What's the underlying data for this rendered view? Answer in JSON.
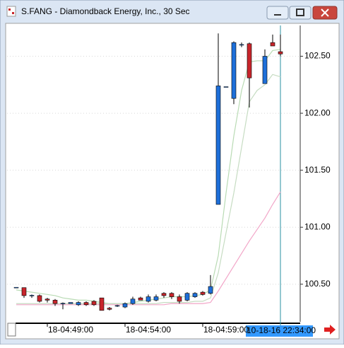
{
  "chart_data": {
    "type": "candlestick",
    "title": "S.FANG - Diamondback Energy, Inc., 30 Sec",
    "categories": [
      null,
      null,
      null,
      null,
      "18-04:49:00",
      null,
      null,
      null,
      null,
      null,
      null,
      null,
      null,
      null,
      "18-04:54:00",
      null,
      null,
      null,
      null,
      null,
      null,
      null,
      null,
      null,
      "18-04:59:00",
      null,
      null,
      null,
      null,
      null,
      null,
      null,
      null,
      null,
      null
    ],
    "open": [
      100.47,
      100.47,
      100.4,
      100.4,
      100.37,
      100.36,
      100.33,
      100.33,
      100.32,
      100.34,
      100.35,
      100.38,
      100.29,
      100.31,
      100.3,
      100.33,
      100.38,
      100.35,
      100.36,
      100.42,
      100.42,
      100.39,
      100.36,
      100.39,
      100.43,
      100.42,
      101.2,
      102.23,
      102.13,
      102.6,
      102.61,
      null,
      102.26,
      102.62,
      102.54
    ],
    "high": [
      100.47,
      100.47,
      100.41,
      100.41,
      100.38,
      100.37,
      100.34,
      100.34,
      100.35,
      100.35,
      100.36,
      100.38,
      100.3,
      100.32,
      100.34,
      100.39,
      100.39,
      100.41,
      100.41,
      100.43,
      100.43,
      100.41,
      100.43,
      100.43,
      100.44,
      100.58,
      102.7,
      102.23,
      102.63,
      102.62,
      102.62,
      null,
      102.56,
      102.69,
      102.69
    ],
    "low": [
      100.47,
      100.38,
      100.38,
      100.34,
      100.34,
      100.31,
      100.28,
      100.33,
      100.31,
      100.31,
      100.31,
      100.27,
      100.27,
      100.3,
      100.29,
      100.32,
      100.36,
      100.34,
      100.35,
      100.38,
      100.37,
      100.33,
      100.35,
      100.38,
      100.4,
      100.41,
      101.2,
      102.23,
      102.08,
      102.58,
      102.05,
      null,
      102.26,
      102.59,
      102.5
    ],
    "close": [
      100.47,
      100.4,
      100.4,
      100.35,
      100.36,
      100.33,
      100.33,
      100.34,
      100.34,
      100.32,
      100.32,
      100.27,
      100.28,
      100.31,
      100.33,
      100.37,
      100.36,
      100.39,
      100.39,
      100.4,
      100.39,
      100.35,
      100.42,
      100.42,
      100.41,
      100.48,
      102.24,
      102.23,
      102.62,
      102.6,
      102.31,
      null,
      102.5,
      102.59,
      102.52
    ],
    "up_color": "#1e6fd9",
    "down_color": "#c8252b",
    "series": [
      {
        "color": "#b9dbb4",
        "values": [
          100.45,
          100.44,
          100.43,
          100.42,
          100.41,
          100.4,
          100.38,
          100.37,
          100.36,
          100.36,
          100.35,
          100.34,
          100.33,
          100.33,
          100.33,
          100.34,
          100.35,
          100.36,
          100.37,
          100.38,
          100.39,
          100.39,
          100.39,
          100.4,
          100.41,
          100.45,
          100.75,
          101.3,
          101.8,
          102.2,
          102.45,
          102.46,
          102.46,
          102.55,
          102.56
        ]
      },
      {
        "color": "#c6dcc2",
        "values": [
          100.33,
          100.33,
          100.33,
          100.33,
          100.33,
          100.33,
          100.33,
          100.33,
          100.33,
          100.33,
          100.33,
          100.33,
          100.33,
          100.33,
          100.33,
          100.33,
          100.33,
          100.33,
          100.33,
          100.34,
          100.34,
          100.34,
          100.34,
          100.35,
          100.35,
          100.38,
          100.6,
          100.95,
          101.3,
          101.7,
          102.1,
          102.2,
          102.25,
          102.34,
          102.32
        ]
      },
      {
        "color": "#f2a6c8",
        "values": [
          100.32,
          100.32,
          100.32,
          100.32,
          100.32,
          100.32,
          100.32,
          100.32,
          100.32,
          100.32,
          100.32,
          100.32,
          100.32,
          100.32,
          100.32,
          100.32,
          100.32,
          100.32,
          100.32,
          100.32,
          100.33,
          100.33,
          100.33,
          100.33,
          100.33,
          100.34,
          100.44,
          100.55,
          100.66,
          100.77,
          100.88,
          100.98,
          101.08,
          101.2,
          101.31
        ]
      }
    ],
    "ylim": [
      100.17,
      102.77
    ],
    "yticks": [
      {
        "value": 100.5,
        "label": "100.50"
      },
      {
        "value": 101,
        "label": "101.00"
      },
      {
        "value": 101.5,
        "label": "101.50"
      },
      {
        "value": 102,
        "label": "102.00"
      },
      {
        "value": 102.5,
        "label": "102.50"
      }
    ],
    "grid": true,
    "crosshair_label": "10-18-16 22:34:00"
  }
}
